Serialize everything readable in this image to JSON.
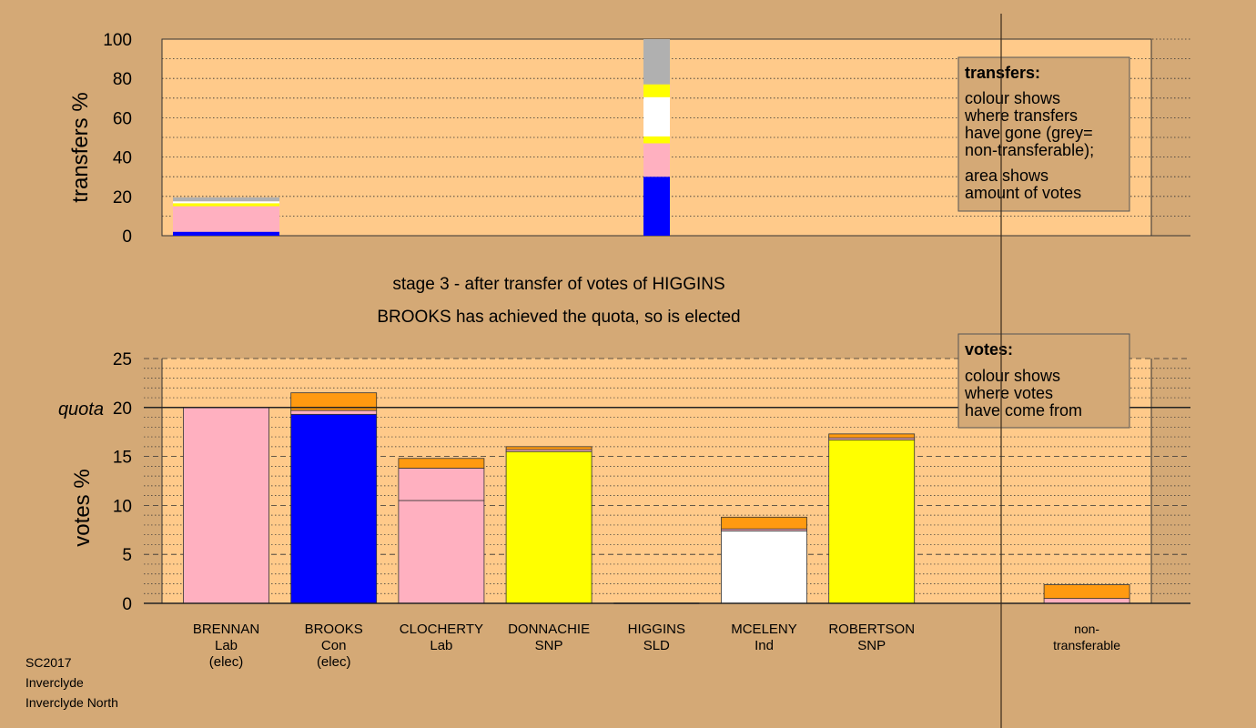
{
  "colors": {
    "background": "#d4a976",
    "plot_bg": "#ffca8a",
    "blue": "#0000ff",
    "pink": "#ffb0c0",
    "yellow": "#ffff00",
    "white": "#ffffff",
    "grey": "#b0b0b0",
    "orange": "#ff9a10"
  },
  "titles": {
    "stage": "stage 3 - after transfer of votes of HIGGINS",
    "result": "BROOKS has achieved the quota, so is elected"
  },
  "footer": {
    "line1": "SC2017",
    "line2": "Inverclyde",
    "line3": "Inverclyde North"
  },
  "legends": {
    "transfers": {
      "title": "transfers:",
      "lines": [
        "colour shows",
        "where transfers",
        "have gone (grey=",
        "non-transferable);",
        "area shows",
        "amount of votes"
      ]
    },
    "votes": {
      "title": "votes:",
      "lines": [
        "colour shows",
        "where votes",
        "have come from"
      ]
    }
  },
  "chart_data": [
    {
      "type": "bar",
      "stacked": true,
      "ylabel": "transfers %",
      "ylim": [
        0,
        100
      ],
      "yticks": [
        0,
        20,
        40,
        60,
        80,
        100
      ],
      "grid": "dotted",
      "bars": [
        {
          "candidate": "BRENNAN",
          "segments": [
            {
              "color": "blue",
              "value": 2
            },
            {
              "color": "pink",
              "value": 13
            },
            {
              "color": "yellow",
              "value": 1.5
            },
            {
              "color": "white",
              "value": 1
            },
            {
              "color": "grey",
              "value": 2
            }
          ]
        },
        {
          "candidate": "HIGGINS",
          "segments": [
            {
              "color": "blue",
              "value": 30
            },
            {
              "color": "pink",
              "value": 17
            },
            {
              "color": "yellow",
              "value": 3.5
            },
            {
              "color": "white",
              "value": 20
            },
            {
              "color": "yellow",
              "value": 6.5
            },
            {
              "color": "grey",
              "value": 23
            }
          ]
        }
      ]
    },
    {
      "type": "bar",
      "stacked": true,
      "ylabel": "votes %",
      "ylim": [
        0,
        25
      ],
      "yticks": [
        0,
        5,
        10,
        15,
        20,
        25
      ],
      "quota": 20,
      "quota_label": "quota",
      "grid": "dashed",
      "categories": [
        {
          "name": "BRENNAN",
          "party": "Lab",
          "status": "(elec)"
        },
        {
          "name": "BROOKS",
          "party": "Con",
          "status": "(elec)"
        },
        {
          "name": "CLOCHERTY",
          "party": "Lab",
          "status": ""
        },
        {
          "name": "DONNACHIE",
          "party": "SNP",
          "status": ""
        },
        {
          "name": "HIGGINS",
          "party": "SLD",
          "status": ""
        },
        {
          "name": "MCELENY",
          "party": "Ind",
          "status": ""
        },
        {
          "name": "ROBERTSON",
          "party": "SNP",
          "status": ""
        },
        {
          "name": "",
          "party": "",
          "status": ""
        },
        {
          "name": "non-",
          "party": "transferable",
          "status": ""
        }
      ],
      "bars": [
        [
          {
            "color": "pink",
            "value": 20
          }
        ],
        [
          {
            "color": "blue",
            "value": 19.3
          },
          {
            "color": "pink",
            "value": 0.4
          },
          {
            "color": "orange",
            "value": 1.8
          }
        ],
        [
          {
            "color": "pink",
            "value": 10.5
          },
          {
            "color": "pink",
            "value": 3.3
          },
          {
            "color": "orange",
            "value": 1.0
          }
        ],
        [
          {
            "color": "yellow",
            "value": 15.5
          },
          {
            "color": "pink",
            "value": 0.2
          },
          {
            "color": "orange",
            "value": 0.3
          }
        ],
        [],
        [
          {
            "color": "white",
            "value": 7.4
          },
          {
            "color": "pink",
            "value": 0.2
          },
          {
            "color": "orange",
            "value": 1.2
          }
        ],
        [
          {
            "color": "yellow",
            "value": 16.7
          },
          {
            "color": "pink",
            "value": 0.2
          },
          {
            "color": "orange",
            "value": 0.4
          }
        ],
        [],
        [
          {
            "color": "pink",
            "value": 0.5
          },
          {
            "color": "orange",
            "value": 1.4
          }
        ]
      ]
    }
  ]
}
